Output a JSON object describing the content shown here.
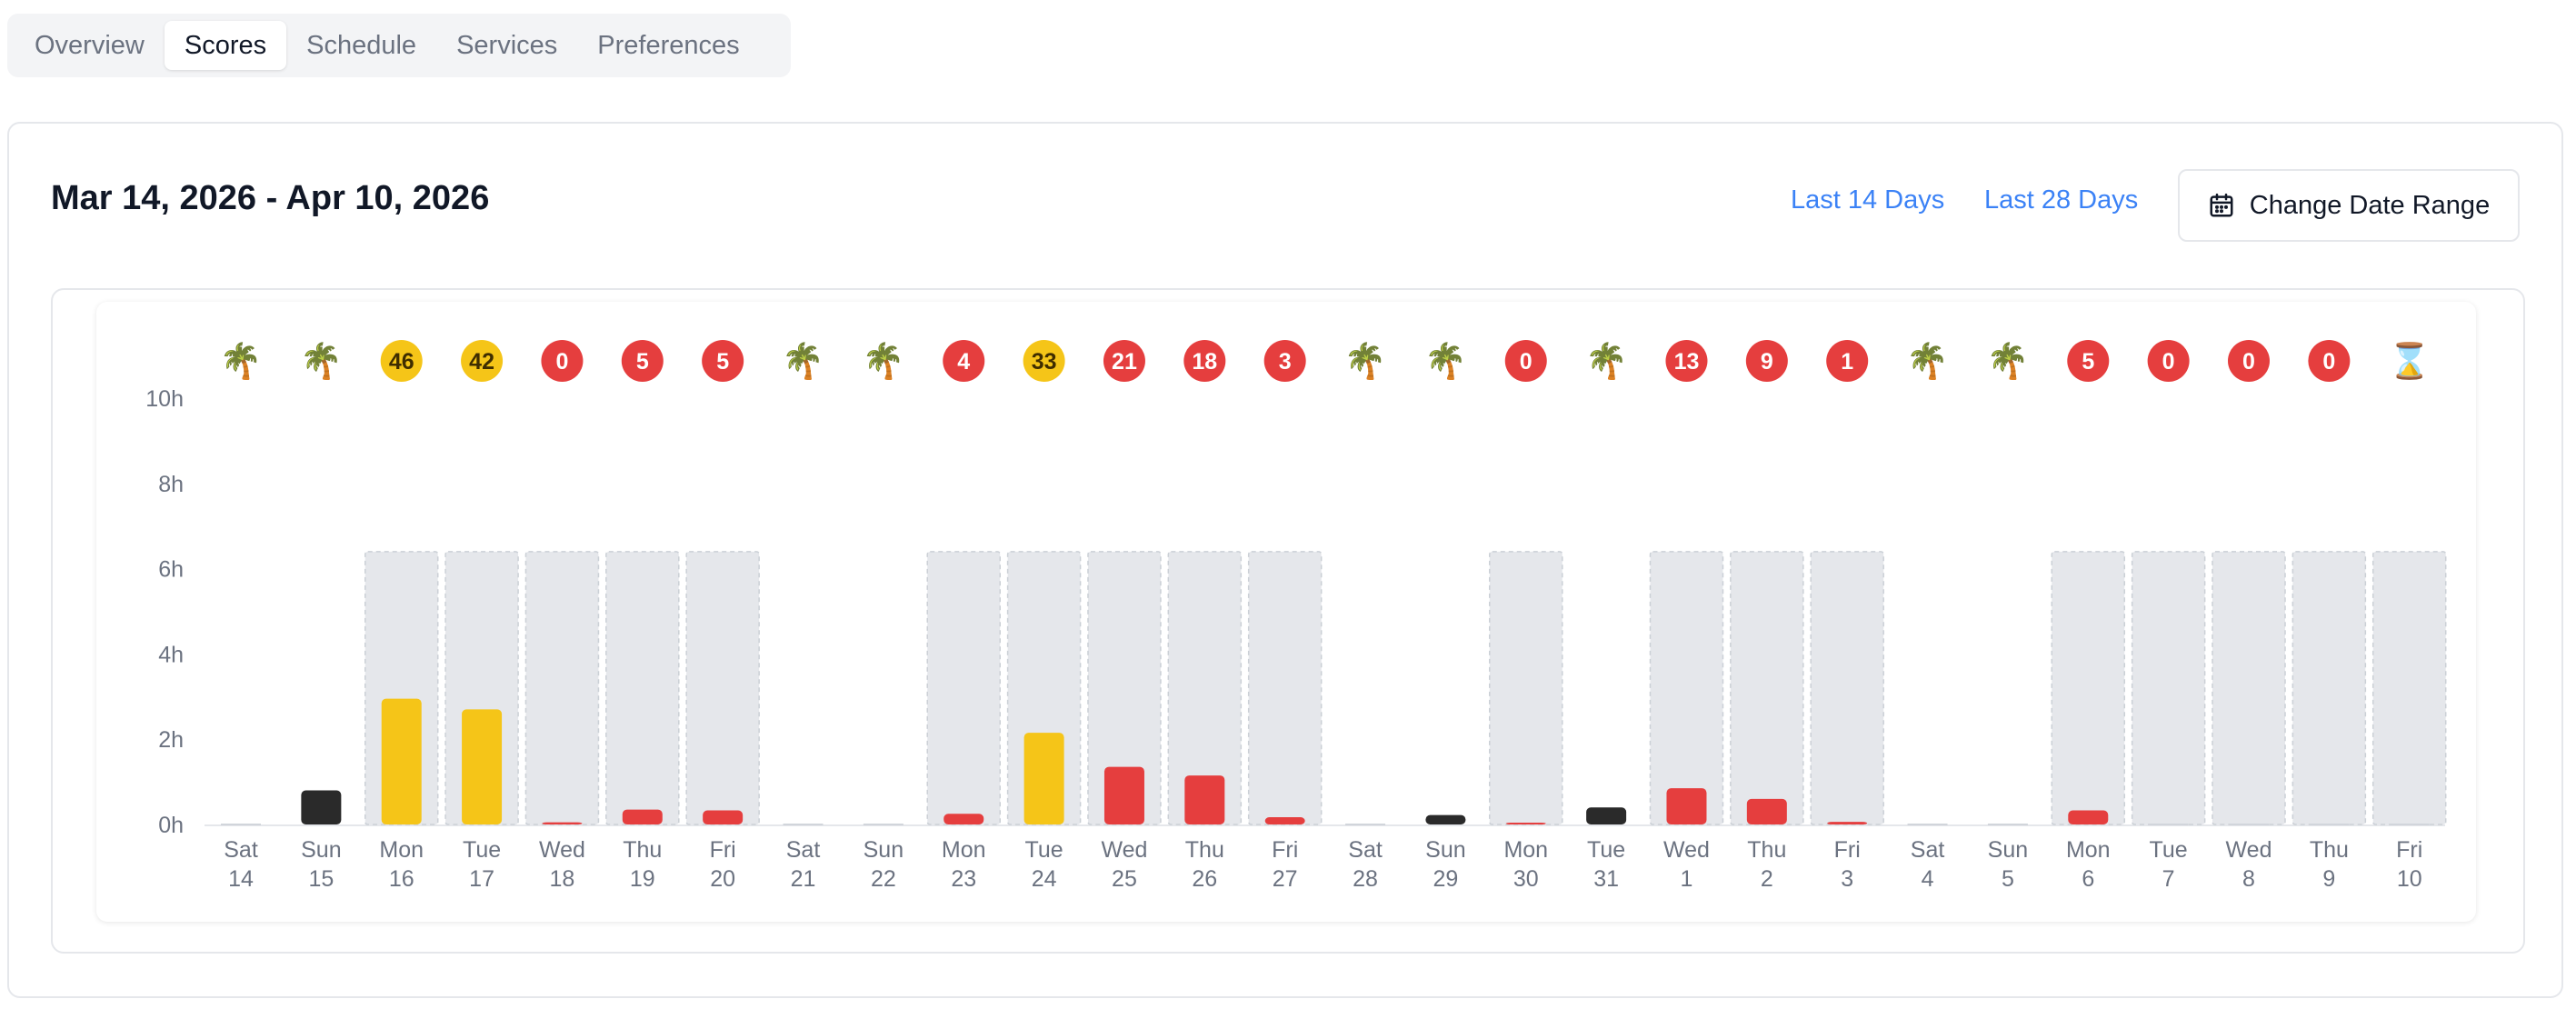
{
  "tabs": [
    {
      "label": "Overview",
      "active": false
    },
    {
      "label": "Scores",
      "active": true
    },
    {
      "label": "Schedule",
      "active": false
    },
    {
      "label": "Services",
      "active": false
    },
    {
      "label": "Preferences",
      "active": false
    }
  ],
  "header": {
    "date_range": "Mar 14, 2026 - Apr 10, 2026",
    "last14_label": "Last 14 Days",
    "last28_label": "Last 28 Days",
    "change_label": "Change Date Range",
    "change_icon": "calendar-icon"
  },
  "colors": {
    "red": "#e53e3e",
    "yellow": "#f5c518",
    "black": "#2a2a2a",
    "bg_bar": "#e5e7eb",
    "link": "#3b82f6"
  },
  "chart_data": {
    "type": "bar",
    "ylim": [
      0,
      10
    ],
    "y_ticks": [
      "0h",
      "2h",
      "4h",
      "6h",
      "8h",
      "10h"
    ],
    "y_tick_values": [
      0,
      2,
      4,
      6,
      8,
      10
    ],
    "scheduled_hours": 6.4,
    "days": [
      {
        "dow": "Sat",
        "day": "14",
        "badge": "🌴",
        "badge_type": "palm",
        "value": 0,
        "color": "none",
        "scheduled": false
      },
      {
        "dow": "Sun",
        "day": "15",
        "badge": "🌴",
        "badge_type": "palm",
        "value": 0.8,
        "color": "black",
        "scheduled": false
      },
      {
        "dow": "Mon",
        "day": "16",
        "badge": "46",
        "badge_type": "yellow",
        "value": 2.95,
        "color": "yellow",
        "scheduled": true
      },
      {
        "dow": "Tue",
        "day": "17",
        "badge": "42",
        "badge_type": "yellow",
        "value": 2.7,
        "color": "yellow",
        "scheduled": true
      },
      {
        "dow": "Wed",
        "day": "18",
        "badge": "0",
        "badge_type": "red",
        "value": 0.05,
        "color": "red",
        "scheduled": true
      },
      {
        "dow": "Thu",
        "day": "19",
        "badge": "5",
        "badge_type": "red",
        "value": 0.35,
        "color": "red",
        "scheduled": true
      },
      {
        "dow": "Fri",
        "day": "20",
        "badge": "5",
        "badge_type": "red",
        "value": 0.33,
        "color": "red",
        "scheduled": true
      },
      {
        "dow": "Sat",
        "day": "21",
        "badge": "🌴",
        "badge_type": "palm",
        "value": 0,
        "color": "none",
        "scheduled": false
      },
      {
        "dow": "Sun",
        "day": "22",
        "badge": "🌴",
        "badge_type": "palm",
        "value": 0,
        "color": "none",
        "scheduled": false
      },
      {
        "dow": "Mon",
        "day": "23",
        "badge": "4",
        "badge_type": "red",
        "value": 0.25,
        "color": "red",
        "scheduled": true
      },
      {
        "dow": "Tue",
        "day": "24",
        "badge": "33",
        "badge_type": "yellow",
        "value": 2.15,
        "color": "yellow",
        "scheduled": true
      },
      {
        "dow": "Wed",
        "day": "25",
        "badge": "21",
        "badge_type": "red",
        "value": 1.35,
        "color": "red",
        "scheduled": true
      },
      {
        "dow": "Thu",
        "day": "26",
        "badge": "18",
        "badge_type": "red",
        "value": 1.15,
        "color": "red",
        "scheduled": true
      },
      {
        "dow": "Fri",
        "day": "27",
        "badge": "3",
        "badge_type": "red",
        "value": 0.17,
        "color": "red",
        "scheduled": true
      },
      {
        "dow": "Sat",
        "day": "28",
        "badge": "🌴",
        "badge_type": "palm",
        "value": 0,
        "color": "none",
        "scheduled": false
      },
      {
        "dow": "Sun",
        "day": "29",
        "badge": "🌴",
        "badge_type": "palm",
        "value": 0.22,
        "color": "black",
        "scheduled": false
      },
      {
        "dow": "Mon",
        "day": "30",
        "badge": "0",
        "badge_type": "red",
        "value": 0.04,
        "color": "red",
        "scheduled": true
      },
      {
        "dow": "Tue",
        "day": "31",
        "badge": "🌴",
        "badge_type": "palm",
        "value": 0.4,
        "color": "black",
        "scheduled": false
      },
      {
        "dow": "Wed",
        "day": "1",
        "badge": "13",
        "badge_type": "red",
        "value": 0.85,
        "color": "red",
        "scheduled": true
      },
      {
        "dow": "Thu",
        "day": "2",
        "badge": "9",
        "badge_type": "red",
        "value": 0.6,
        "color": "red",
        "scheduled": true
      },
      {
        "dow": "Fri",
        "day": "3",
        "badge": "1",
        "badge_type": "red",
        "value": 0.06,
        "color": "red",
        "scheduled": true
      },
      {
        "dow": "Sat",
        "day": "4",
        "badge": "🌴",
        "badge_type": "palm",
        "value": 0,
        "color": "none",
        "scheduled": false
      },
      {
        "dow": "Sun",
        "day": "5",
        "badge": "🌴",
        "badge_type": "palm",
        "value": 0,
        "color": "none",
        "scheduled": false
      },
      {
        "dow": "Mon",
        "day": "6",
        "badge": "5",
        "badge_type": "red",
        "value": 0.33,
        "color": "red",
        "scheduled": true
      },
      {
        "dow": "Tue",
        "day": "7",
        "badge": "0",
        "badge_type": "red",
        "value": 0,
        "color": "none",
        "scheduled": true
      },
      {
        "dow": "Wed",
        "day": "8",
        "badge": "0",
        "badge_type": "red",
        "value": 0,
        "color": "none",
        "scheduled": true
      },
      {
        "dow": "Thu",
        "day": "9",
        "badge": "0",
        "badge_type": "red",
        "value": 0,
        "color": "none",
        "scheduled": true
      },
      {
        "dow": "Fri",
        "day": "10",
        "badge": "⌛",
        "badge_type": "hourglass",
        "value": 0,
        "color": "none",
        "scheduled": true
      }
    ]
  }
}
